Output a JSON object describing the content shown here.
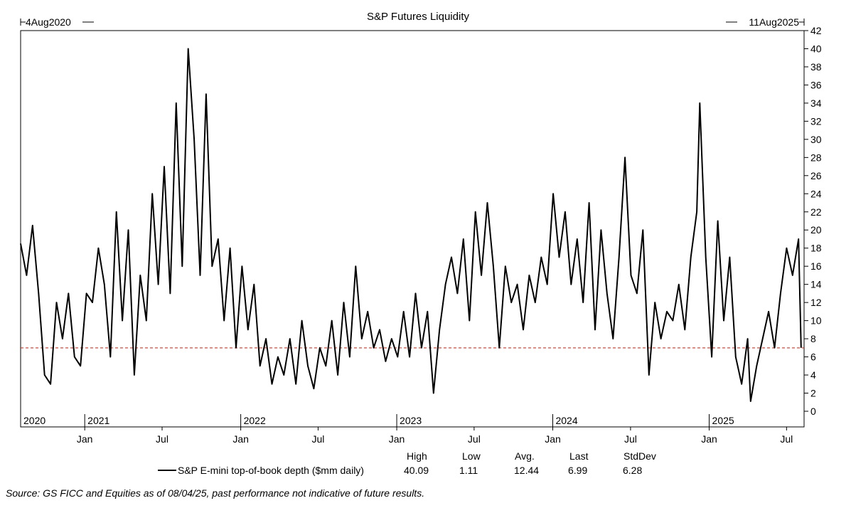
{
  "chart_data": {
    "type": "line",
    "title": "S&P Futures Liquidity",
    "range_start": "4Aug2020",
    "range_end": "11Aug2025",
    "ylim": [
      0,
      42
    ],
    "y_ticks": [
      0,
      2,
      4,
      6,
      8,
      10,
      12,
      14,
      16,
      18,
      20,
      22,
      24,
      26,
      28,
      30,
      32,
      34,
      36,
      38,
      40,
      42
    ],
    "x_start": "2020-08-04",
    "x_end": "2025-08-11",
    "year_labels": [
      {
        "date": "2020-08-04",
        "label": "2020"
      },
      {
        "date": "2021-01-01",
        "label": "2021"
      },
      {
        "date": "2022-01-01",
        "label": "2022"
      },
      {
        "date": "2023-01-01",
        "label": "2023"
      },
      {
        "date": "2024-01-01",
        "label": "2024"
      },
      {
        "date": "2025-01-01",
        "label": "2025"
      }
    ],
    "month_labels": [
      {
        "date": "2021-01-01",
        "label": "Jan"
      },
      {
        "date": "2021-07-01",
        "label": "Jul"
      },
      {
        "date": "2022-01-01",
        "label": "Jan"
      },
      {
        "date": "2022-07-01",
        "label": "Jul"
      },
      {
        "date": "2023-01-01",
        "label": "Jan"
      },
      {
        "date": "2023-07-01",
        "label": "Jul"
      },
      {
        "date": "2024-01-01",
        "label": "Jan"
      },
      {
        "date": "2024-07-01",
        "label": "Jul"
      },
      {
        "date": "2025-01-01",
        "label": "Jan"
      },
      {
        "date": "2025-07-01",
        "label": "Jul"
      }
    ],
    "reference_line": {
      "value": 6.99,
      "color": "#c0392b",
      "style": "dashed"
    },
    "series": [
      {
        "name": "S&P E-mini top-of-book depth ($mm daily)",
        "color": "#000000",
        "points": [
          [
            "2020-08-04",
            18.5
          ],
          [
            "2020-08-18",
            15
          ],
          [
            "2020-09-01",
            20.5
          ],
          [
            "2020-09-15",
            13
          ],
          [
            "2020-09-29",
            4
          ],
          [
            "2020-10-13",
            3
          ],
          [
            "2020-10-27",
            12
          ],
          [
            "2020-11-10",
            8
          ],
          [
            "2020-11-24",
            13
          ],
          [
            "2020-12-08",
            6
          ],
          [
            "2020-12-22",
            5
          ],
          [
            "2021-01-05",
            13
          ],
          [
            "2021-01-19",
            12
          ],
          [
            "2021-02-02",
            18
          ],
          [
            "2021-02-16",
            14
          ],
          [
            "2021-03-02",
            6
          ],
          [
            "2021-03-16",
            22
          ],
          [
            "2021-03-30",
            10
          ],
          [
            "2021-04-13",
            20
          ],
          [
            "2021-04-27",
            4
          ],
          [
            "2021-05-11",
            15
          ],
          [
            "2021-05-25",
            10
          ],
          [
            "2021-06-08",
            24
          ],
          [
            "2021-06-22",
            14
          ],
          [
            "2021-07-06",
            27
          ],
          [
            "2021-07-20",
            13
          ],
          [
            "2021-08-03",
            34
          ],
          [
            "2021-08-17",
            16
          ],
          [
            "2021-08-31",
            40
          ],
          [
            "2021-09-14",
            30
          ],
          [
            "2021-09-28",
            15
          ],
          [
            "2021-10-12",
            35
          ],
          [
            "2021-10-26",
            16
          ],
          [
            "2021-11-09",
            19
          ],
          [
            "2021-11-23",
            10
          ],
          [
            "2021-12-07",
            18
          ],
          [
            "2021-12-21",
            7
          ],
          [
            "2022-01-04",
            16
          ],
          [
            "2022-01-18",
            9
          ],
          [
            "2022-02-01",
            14
          ],
          [
            "2022-02-15",
            5
          ],
          [
            "2022-03-01",
            8
          ],
          [
            "2022-03-15",
            3
          ],
          [
            "2022-03-29",
            6
          ],
          [
            "2022-04-12",
            4
          ],
          [
            "2022-04-26",
            8
          ],
          [
            "2022-05-10",
            3
          ],
          [
            "2022-05-24",
            10
          ],
          [
            "2022-06-07",
            5
          ],
          [
            "2022-06-21",
            2.5
          ],
          [
            "2022-07-05",
            7
          ],
          [
            "2022-07-19",
            5
          ],
          [
            "2022-08-02",
            10
          ],
          [
            "2022-08-16",
            4
          ],
          [
            "2022-08-30",
            12
          ],
          [
            "2022-09-13",
            6
          ],
          [
            "2022-09-27",
            16
          ],
          [
            "2022-10-11",
            8
          ],
          [
            "2022-10-25",
            11
          ],
          [
            "2022-11-08",
            7
          ],
          [
            "2022-11-22",
            9
          ],
          [
            "2022-12-06",
            5.5
          ],
          [
            "2022-12-20",
            8
          ],
          [
            "2023-01-03",
            6
          ],
          [
            "2023-01-17",
            11
          ],
          [
            "2023-01-31",
            6
          ],
          [
            "2023-02-14",
            13
          ],
          [
            "2023-02-28",
            7
          ],
          [
            "2023-03-14",
            11
          ],
          [
            "2023-03-28",
            2
          ],
          [
            "2023-04-11",
            9
          ],
          [
            "2023-04-25",
            14
          ],
          [
            "2023-05-09",
            17
          ],
          [
            "2023-05-23",
            13
          ],
          [
            "2023-06-06",
            19
          ],
          [
            "2023-06-20",
            10
          ],
          [
            "2023-07-04",
            22
          ],
          [
            "2023-07-18",
            15
          ],
          [
            "2023-08-01",
            23
          ],
          [
            "2023-08-15",
            16
          ],
          [
            "2023-08-29",
            7
          ],
          [
            "2023-09-12",
            16
          ],
          [
            "2023-09-26",
            12
          ],
          [
            "2023-10-10",
            14
          ],
          [
            "2023-10-24",
            9
          ],
          [
            "2023-11-07",
            15
          ],
          [
            "2023-11-21",
            12
          ],
          [
            "2023-12-05",
            17
          ],
          [
            "2023-12-19",
            14
          ],
          [
            "2024-01-02",
            24
          ],
          [
            "2024-01-16",
            17
          ],
          [
            "2024-01-30",
            22
          ],
          [
            "2024-02-13",
            14
          ],
          [
            "2024-02-27",
            19
          ],
          [
            "2024-03-12",
            12
          ],
          [
            "2024-03-26",
            23
          ],
          [
            "2024-04-09",
            9
          ],
          [
            "2024-04-23",
            20
          ],
          [
            "2024-05-07",
            13
          ],
          [
            "2024-05-21",
            8
          ],
          [
            "2024-06-04",
            17
          ],
          [
            "2024-06-18",
            28
          ],
          [
            "2024-07-02",
            15
          ],
          [
            "2024-07-16",
            13
          ],
          [
            "2024-07-30",
            20
          ],
          [
            "2024-08-13",
            4
          ],
          [
            "2024-08-27",
            12
          ],
          [
            "2024-09-10",
            8
          ],
          [
            "2024-09-24",
            11
          ],
          [
            "2024-10-08",
            10
          ],
          [
            "2024-10-22",
            14
          ],
          [
            "2024-11-05",
            9
          ],
          [
            "2024-11-19",
            17
          ],
          [
            "2024-12-03",
            22
          ],
          [
            "2024-12-10",
            34
          ],
          [
            "2024-12-24",
            17
          ],
          [
            "2025-01-07",
            6
          ],
          [
            "2025-01-21",
            21
          ],
          [
            "2025-02-04",
            10
          ],
          [
            "2025-02-18",
            17
          ],
          [
            "2025-03-04",
            6
          ],
          [
            "2025-03-18",
            3
          ],
          [
            "2025-04-01",
            8
          ],
          [
            "2025-04-08",
            1.1
          ],
          [
            "2025-04-22",
            5
          ],
          [
            "2025-05-06",
            8
          ],
          [
            "2025-05-20",
            11
          ],
          [
            "2025-06-03",
            7
          ],
          [
            "2025-06-17",
            13
          ],
          [
            "2025-07-01",
            18
          ],
          [
            "2025-07-15",
            15
          ],
          [
            "2025-07-29",
            19
          ],
          [
            "2025-08-04",
            7
          ]
        ]
      }
    ],
    "stats": {
      "labels": [
        "High",
        "Low",
        "Avg.",
        "Last",
        "StdDev"
      ],
      "values": [
        "40.09",
        "1.11",
        "12.44",
        "6.99",
        "6.28"
      ]
    },
    "source": "Source: GS FICC and Equities as of 08/04/25, past performance not indicative of future results."
  }
}
